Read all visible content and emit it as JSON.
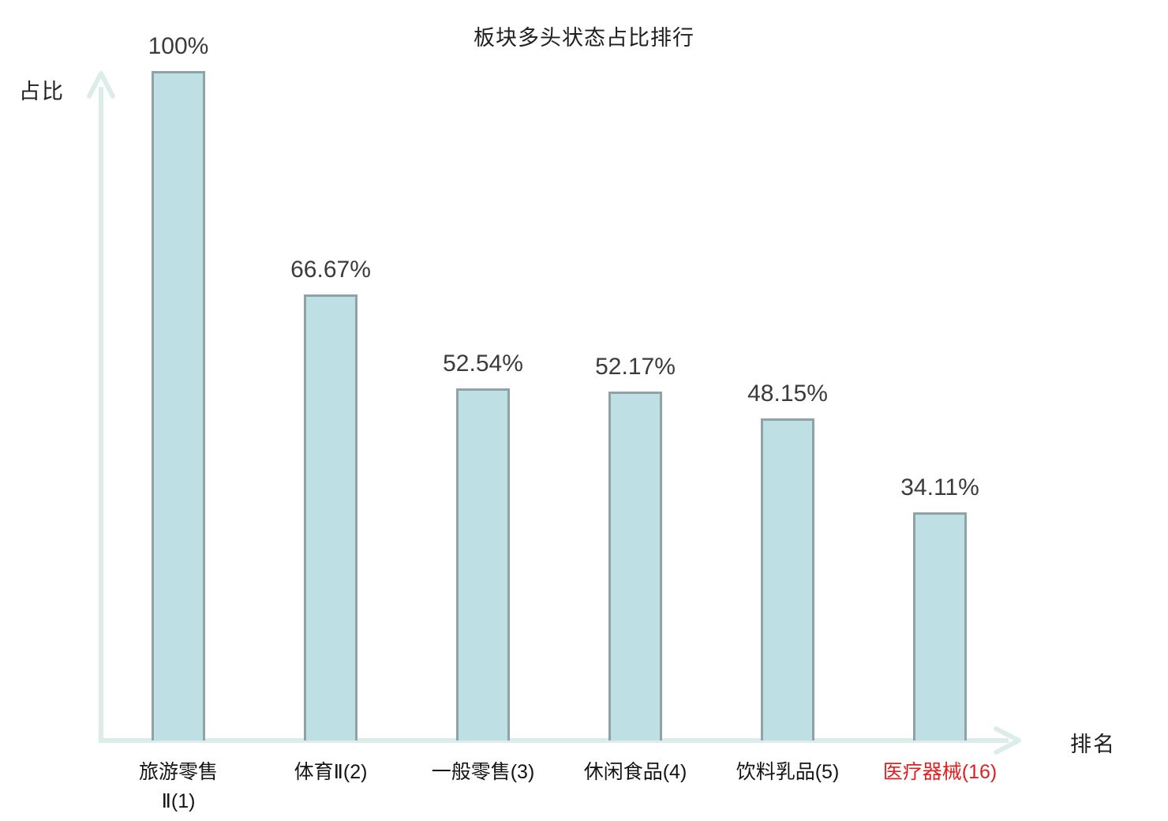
{
  "chart_data": {
    "type": "bar",
    "title": "板块多头状态占比排行",
    "xlabel": "排名",
    "ylabel": "占比",
    "categories": [
      "旅游零售\nⅡ(1)",
      "体育Ⅱ(2)",
      "一般零售(3)",
      "休闲食品(4)",
      "饮料乳品(5)",
      "医疗器械(16)"
    ],
    "values": [
      100,
      66.67,
      52.54,
      52.17,
      48.15,
      34.11
    ],
    "value_labels": [
      "100%",
      "66.67%",
      "52.54%",
      "52.17%",
      "48.15%",
      "34.11%"
    ],
    "ranks": [
      1,
      2,
      3,
      4,
      5,
      16
    ],
    "highlighted_category_index": 5,
    "ylim": [
      0,
      100
    ],
    "grid": false,
    "legend": "none",
    "colors": {
      "bar_fill": "#bedfe3",
      "bar_border": "#8fa3a6",
      "axis": "#dcede9",
      "value_text": "#3b3b3b",
      "category_text": "#141414",
      "highlight_text": "#e02020"
    }
  }
}
